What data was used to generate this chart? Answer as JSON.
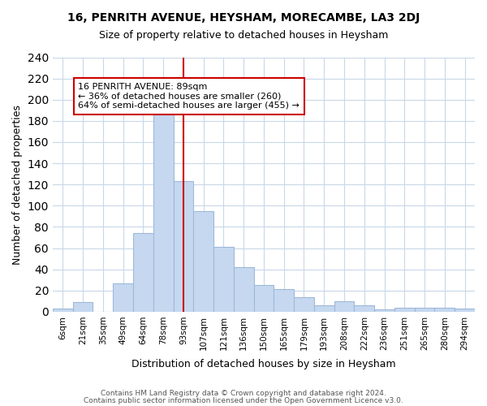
{
  "title": "16, PENRITH AVENUE, HEYSHAM, MORECAMBE, LA3 2DJ",
  "subtitle": "Size of property relative to detached houses in Heysham",
  "xlabel": "Distribution of detached houses by size in Heysham",
  "ylabel": "Number of detached properties",
  "bar_labels": [
    "6sqm",
    "21sqm",
    "35sqm",
    "49sqm",
    "64sqm",
    "78sqm",
    "93sqm",
    "107sqm",
    "121sqm",
    "136sqm",
    "150sqm",
    "165sqm",
    "179sqm",
    "193sqm",
    "208sqm",
    "222sqm",
    "236sqm",
    "251sqm",
    "265sqm",
    "280sqm",
    "294sqm"
  ],
  "bar_values": [
    3,
    9,
    0,
    27,
    74,
    198,
    123,
    95,
    61,
    42,
    25,
    21,
    14,
    6,
    10,
    6,
    2,
    4,
    4,
    4,
    3
  ],
  "bar_color": "#c5d8f0",
  "bar_edge_color": "#a0b8d8",
  "vline_x": 6,
  "vline_color": "#cc0000",
  "annotation_text": "16 PENRITH AVENUE: 89sqm\n← 36% of detached houses are smaller (260)\n64% of semi-detached houses are larger (455) →",
  "annotation_box_color": "#ffffff",
  "annotation_box_edge": "#cc0000",
  "ylim": [
    0,
    240
  ],
  "yticks": [
    0,
    20,
    40,
    60,
    80,
    100,
    120,
    140,
    160,
    180,
    200,
    220,
    240
  ],
  "footer1": "Contains HM Land Registry data © Crown copyright and database right 2024.",
  "footer2": "Contains public sector information licensed under the Open Government Licence v3.0.",
  "bg_color": "#ffffff",
  "grid_color": "#c8d8e8"
}
